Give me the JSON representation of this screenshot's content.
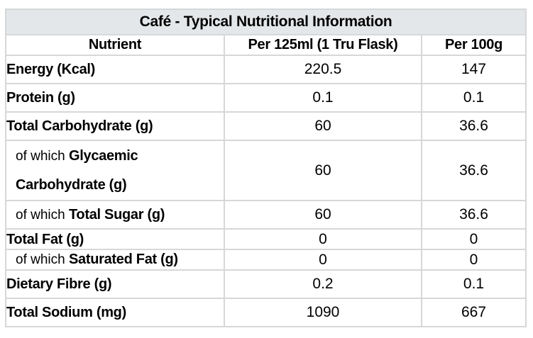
{
  "chart_data": {
    "type": "table",
    "title": "Café - Typical Nutritional Information",
    "columns": [
      "Nutrient",
      "Per 125ml (1 Tru Flask)",
      "Per 100g"
    ],
    "rows": [
      {
        "prefix": "",
        "name": "Energy (Kcal)",
        "per_125ml": 220.5,
        "per_100g": 147,
        "size": "tall",
        "indent": false
      },
      {
        "prefix": "",
        "name": "Protein (g)",
        "per_125ml": 0.1,
        "per_100g": 0.1,
        "size": "tall",
        "indent": false
      },
      {
        "prefix": "",
        "name": "Total Carbohydrate (g)",
        "per_125ml": 60,
        "per_100g": 36.6,
        "size": "tall",
        "indent": false
      },
      {
        "prefix": "of which ",
        "name": "Glycaemic Carbohydrate (g)",
        "per_125ml": 60,
        "per_100g": 36.6,
        "size": "xtall",
        "indent": true
      },
      {
        "prefix": "of which ",
        "name": "Total Sugar (g)",
        "per_125ml": 60,
        "per_100g": 36.6,
        "size": "tall",
        "indent": true
      },
      {
        "prefix": "",
        "name": "Total Fat (g)",
        "per_125ml": 0,
        "per_100g": 0,
        "size": "short",
        "indent": false
      },
      {
        "prefix": "of which ",
        "name": "Saturated Fat (g)",
        "per_125ml": 0,
        "per_100g": 0,
        "size": "short",
        "indent": true
      },
      {
        "prefix": "",
        "name": "Dietary Fibre (g)",
        "per_125ml": 0.2,
        "per_100g": 0.1,
        "size": "tall",
        "indent": false
      },
      {
        "prefix": "",
        "name": "Total Sodium (mg)",
        "per_125ml": 1090,
        "per_100g": 667,
        "size": "tall",
        "indent": false
      }
    ],
    "colors": {
      "page_background": "#ffffff",
      "title_background": "#e4e7e9",
      "grid_line": "#d6d7d8",
      "text": "#000000"
    },
    "layout": {
      "legend": "none",
      "grid": "on"
    }
  }
}
